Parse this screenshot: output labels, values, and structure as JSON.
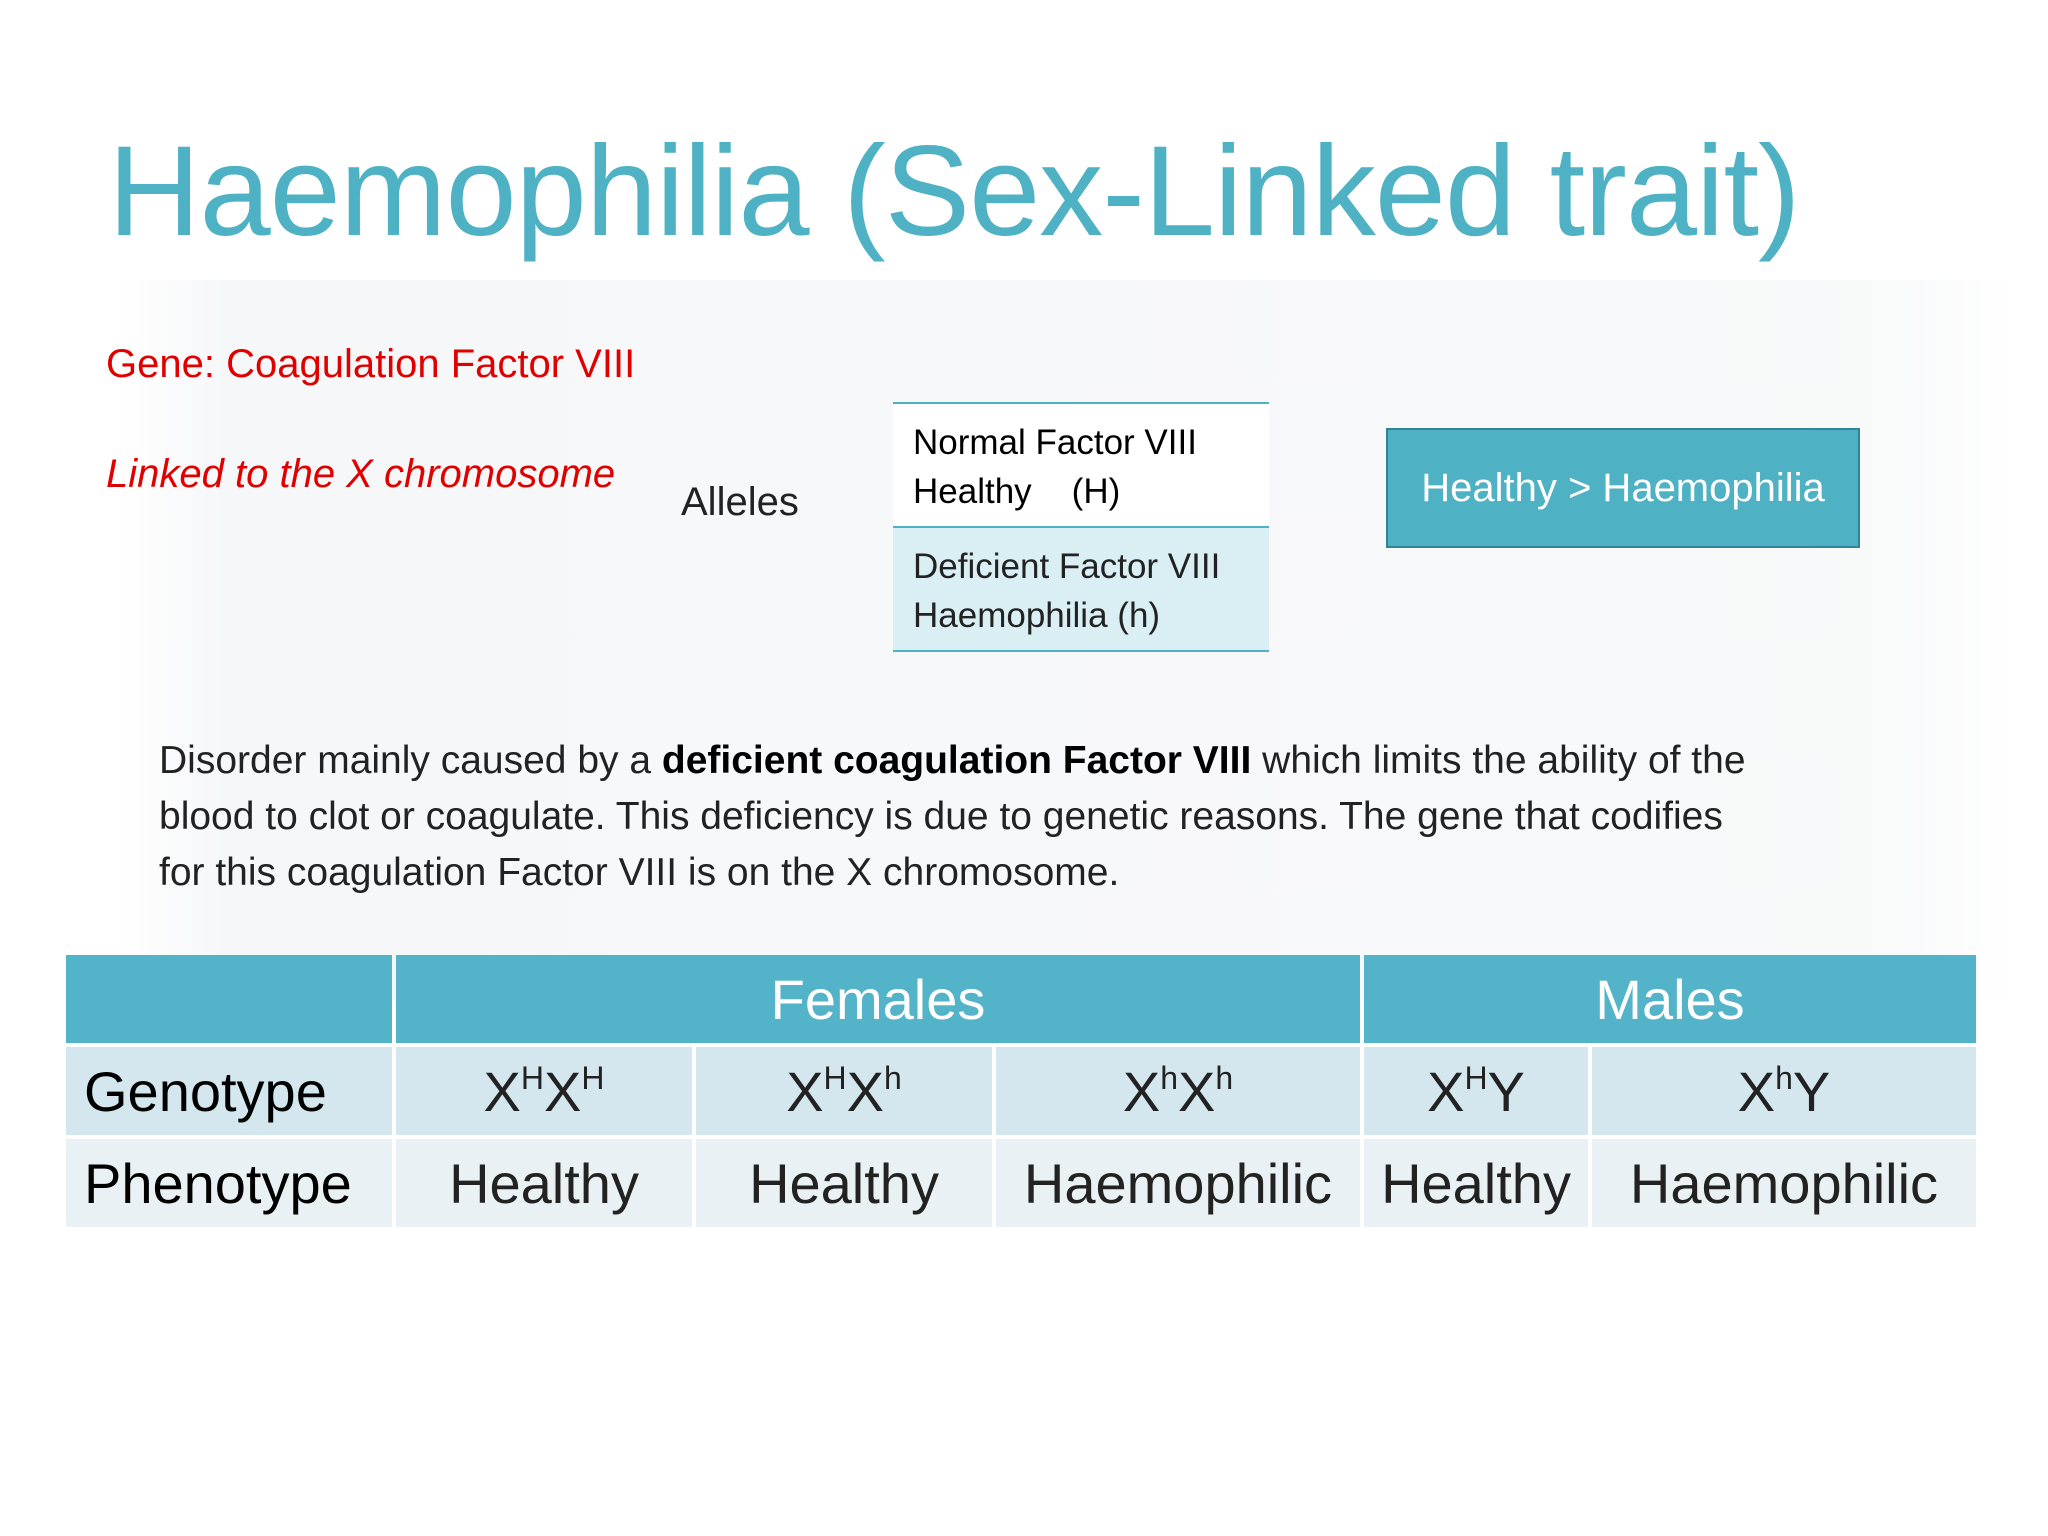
{
  "slide": {
    "title": "Haemophilia (Sex-Linked trait)",
    "gene_label": "Gene: Coagulation Factor VIII",
    "linkage_note": "Linked to the X chromosome",
    "alleles_label": "Alleles",
    "alleles": [
      {
        "line1": "Normal Factor VIII",
        "line2_name": "Healthy",
        "line2_symbol": "(H)"
      },
      {
        "line1": "Deficient Factor VIII",
        "line2_name": "Haemophilia",
        "line2_symbol": "(h)"
      }
    ],
    "dominance": "Healthy > Haemophilia",
    "description": {
      "before": "Disorder mainly caused by a ",
      "bold": "deficient coagulation Factor VIII",
      "after": " which limits the ability of the blood to clot or coagulate. This deficiency is due to genetic reasons. The gene that codifies for this coagulation Factor VIII is on the X chromosome."
    },
    "table": {
      "groups": [
        "Females",
        "Males"
      ],
      "row_labels": [
        "Genotype",
        "Phenotype"
      ],
      "columns": [
        {
          "a": "X",
          "a_sup": "H",
          "b": "X",
          "b_sup": "H",
          "phenotype": "Healthy"
        },
        {
          "a": "X",
          "a_sup": "H",
          "b": "X",
          "b_sup": "h",
          "phenotype": "Healthy"
        },
        {
          "a": "X",
          "a_sup": "h",
          "b": "X",
          "b_sup": "h",
          "phenotype": "Haemophilic"
        },
        {
          "a": "X",
          "a_sup": "H",
          "b": "Y",
          "b_sup": "",
          "phenotype": "Healthy"
        },
        {
          "a": "X",
          "a_sup": "h",
          "b": "Y",
          "b_sup": "",
          "phenotype": "Haemophilic"
        }
      ]
    },
    "colors": {
      "accent": "#4eb1c4",
      "header": "#53b3c8",
      "red": "#e00000",
      "genotype_row": "#d4e7ee",
      "phenotype_row": "#e9f1f5"
    }
  }
}
